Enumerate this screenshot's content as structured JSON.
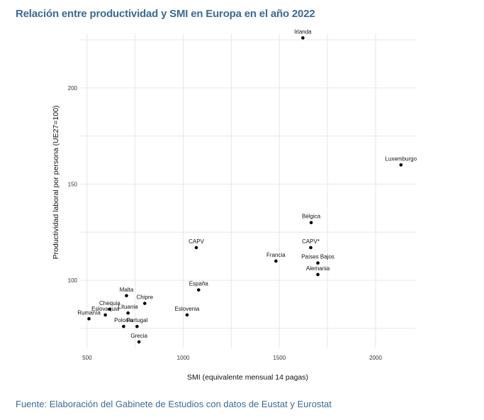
{
  "title": "Relación entre productividad y SMI en Europa en el año 2022",
  "source": "Fuente:  Elaboración del Gabinete de Estudios con datos de Eustat y Eurostat",
  "chart_data": {
    "type": "scatter",
    "xlabel": "SMI (equivalente mensual 14 pagas)",
    "ylabel": "Productividad laboral por persona (UE27=100)",
    "xlim": [
      460,
      2210
    ],
    "ylim": [
      65,
      228
    ],
    "xticks": [
      500,
      1000,
      1500,
      2000
    ],
    "yticks": [
      100,
      150,
      200
    ],
    "grid": true,
    "points": [
      {
        "label": "Irlanda",
        "x": 1622,
        "y": 226
      },
      {
        "label": "Luxemburgo",
        "x": 2132,
        "y": 160
      },
      {
        "label": "Bélgica",
        "x": 1665,
        "y": 130
      },
      {
        "label": "CAPV",
        "x": 1068,
        "y": 117
      },
      {
        "label": "CAPV*",
        "x": 1663,
        "y": 117
      },
      {
        "label": "Francia",
        "x": 1482,
        "y": 110
      },
      {
        "label": "Países Bajos",
        "x": 1700,
        "y": 109
      },
      {
        "label": "Alemania",
        "x": 1700,
        "y": 103
      },
      {
        "label": "España",
        "x": 1080,
        "y": 95
      },
      {
        "label": "Malta",
        "x": 705,
        "y": 92
      },
      {
        "label": "Chipre",
        "x": 800,
        "y": 88
      },
      {
        "label": "Chequia",
        "x": 618,
        "y": 85
      },
      {
        "label": "Eslovaquia",
        "x": 595,
        "y": 82
      },
      {
        "label": "Lituania",
        "x": 713,
        "y": 83
      },
      {
        "label": "Eslovenia",
        "x": 1020,
        "y": 82
      },
      {
        "label": "Rumanía",
        "x": 510,
        "y": 80
      },
      {
        "label": "Polonia",
        "x": 690,
        "y": 76
      },
      {
        "label": "Portugal",
        "x": 760,
        "y": 76
      },
      {
        "label": "Grecia",
        "x": 770,
        "y": 68
      }
    ]
  }
}
